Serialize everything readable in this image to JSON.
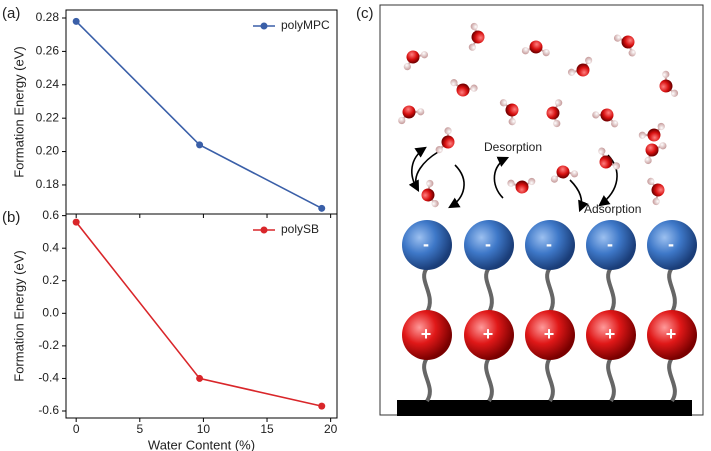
{
  "chart_data": [
    {
      "type": "line",
      "panel_label": "(a)",
      "ylabel": "Formation Energy (eV)",
      "x": [
        0,
        9.7,
        19.3
      ],
      "series": [
        {
          "name": "polyMPC",
          "color": "#3a5fa8",
          "values": [
            0.278,
            0.204,
            0.166
          ]
        }
      ],
      "xlim": [
        -0.8,
        20.5
      ],
      "xticks": [
        0,
        5,
        10,
        15,
        20
      ],
      "ylim": [
        0.1626,
        0.2848
      ],
      "yticks": [
        0.18,
        {
          "value": 0.2,
          "label": "0.20"
        },
        0.22,
        0.24,
        0.26,
        0.28
      ],
      "legend": "upper right"
    },
    {
      "type": "line",
      "panel_label": "(b)",
      "ylabel": "Formation Energy (eV)",
      "xlabel": "Water Content (%)",
      "x": [
        0,
        9.7,
        19.3
      ],
      "series": [
        {
          "name": "polySB",
          "color": "#d9262a",
          "values": [
            0.56,
            -0.4,
            -0.57
          ]
        }
      ],
      "xlim": [
        -0.8,
        20.5
      ],
      "xticks": [
        0,
        5,
        10,
        15,
        20
      ],
      "ylim": [
        -0.643,
        0.61
      ],
      "yticks": [
        -0.6,
        -0.4,
        -0.2,
        {
          "value": 0,
          "label": "0.0"
        },
        0.2,
        0.4,
        0.6
      ],
      "legend": "upper right"
    }
  ],
  "diagram": {
    "panel_label": "(c)",
    "labels": [
      "Desorption",
      "Adsorption"
    ],
    "anion_sign": "-",
    "cation_sign": "+"
  }
}
